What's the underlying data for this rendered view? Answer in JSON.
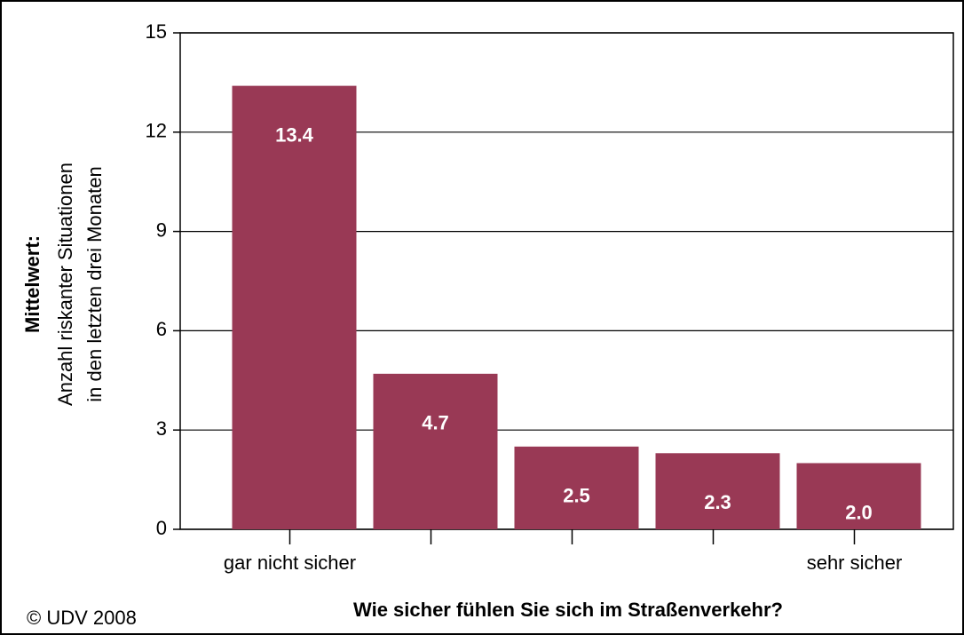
{
  "chart_data": {
    "type": "bar",
    "categories": [
      "gar nicht sicher",
      null,
      null,
      null,
      "sehr sicher"
    ],
    "values": [
      13.4,
      4.7,
      2.5,
      2.3,
      2.0
    ],
    "value_labels": [
      "13.4",
      "4.7",
      "2.5",
      "2.3",
      "2.0"
    ],
    "color": "#993955",
    "ylim": [
      0,
      15
    ],
    "yticks": [
      0,
      3,
      6,
      9,
      12,
      15
    ],
    "grid": true,
    "ylabel": [
      "Mittelwert:",
      "Anzahl riskanter Situationen",
      "in den letzten drei Monaten"
    ],
    "xlabel": "Wie sicher fühlen Sie sich im Straßenverkehr?",
    "note": "© UDV 2008"
  }
}
